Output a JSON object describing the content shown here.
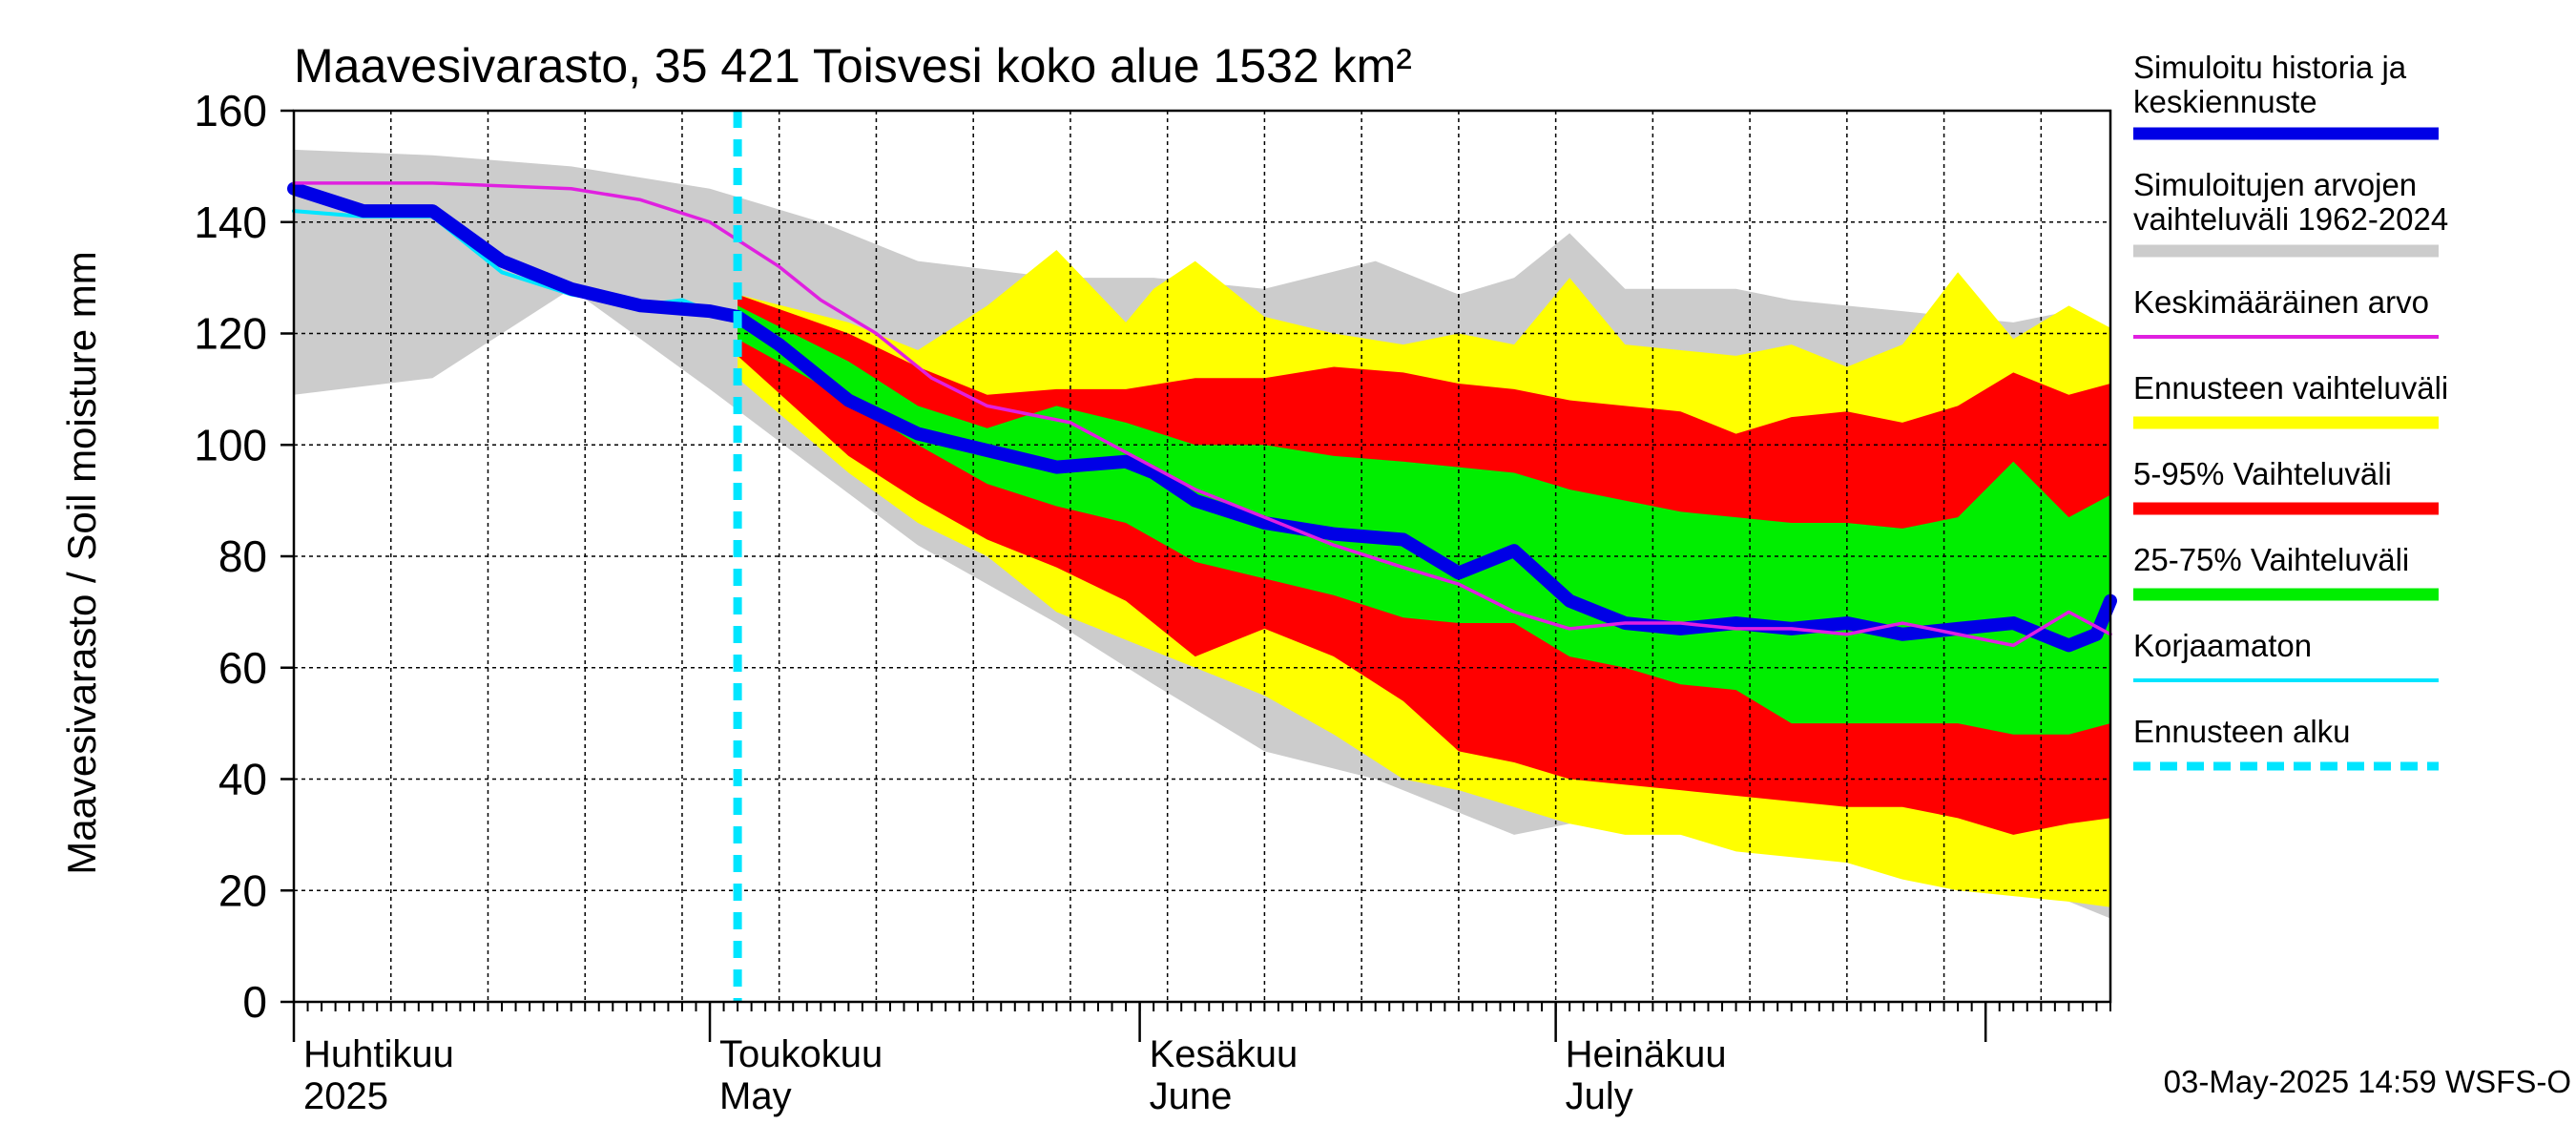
{
  "chart_data": {
    "type": "area",
    "title": "Maavesivarasto, 35 421 Toisvesi koko alue 1532 km²",
    "ylabel": "Maavesivarasto / Soil moisture   mm",
    "ylim": [
      0,
      160
    ],
    "yticks": [
      0,
      20,
      40,
      60,
      80,
      100,
      120,
      140,
      160
    ],
    "xlim": [
      0,
      131
    ],
    "forecast_start_day": 32,
    "month_starts": [
      0,
      30,
      61,
      91,
      122
    ],
    "month_labels": [
      {
        "day": 0,
        "fi": "Huhtikuu",
        "en": "2025"
      },
      {
        "day": 30,
        "fi": "Toukokuu",
        "en": "May"
      },
      {
        "day": 61,
        "fi": "Kesäkuu",
        "en": "June"
      },
      {
        "day": 91,
        "fi": "Heinäkuu",
        "en": "July"
      }
    ],
    "timestamp": "03-May-2025 14:59 WSFS-O",
    "legend": [
      {
        "key": "sim",
        "label1": "Simuloitu historia ja",
        "label2": "keskiennuste",
        "color": "#0000e6",
        "style": "thick"
      },
      {
        "key": "range",
        "label1": "Simuloitujen arvojen",
        "label2": "vaihteluväli 1962-2024",
        "color": "#cccccc",
        "style": "thick"
      },
      {
        "key": "mean",
        "label1": "Keskimääräinen arvo",
        "label2": "",
        "color": "#e020e0",
        "style": "thin"
      },
      {
        "key": "fcrange",
        "label1": "Ennusteen vaihteluväli",
        "label2": "",
        "color": "#ffff00",
        "style": "thick"
      },
      {
        "key": "p595",
        "label1": "5-95% Vaihteluväli",
        "label2": "",
        "color": "#ff0000",
        "style": "thick"
      },
      {
        "key": "p2575",
        "label1": "25-75% Vaihteluväli",
        "label2": "",
        "color": "#00ee00",
        "style": "thick"
      },
      {
        "key": "uncorr",
        "label1": "Korjaamaton",
        "label2": "",
        "color": "#00e5ff",
        "style": "thin"
      },
      {
        "key": "fcstart",
        "label1": "Ennusteen alku",
        "label2": "",
        "color": "#00e5ff",
        "style": "dashed"
      }
    ],
    "series": {
      "hist_range": {
        "x": [
          0,
          10,
          20,
          30,
          38,
          45,
          55,
          62,
          70,
          78,
          84,
          88,
          92,
          96,
          100,
          104,
          108,
          112,
          116,
          120,
          124,
          128,
          131
        ],
        "high": [
          153,
          152,
          150,
          146,
          140,
          133,
          130,
          130,
          128,
          133,
          127,
          130,
          138,
          128,
          128,
          128,
          126,
          125,
          124,
          123,
          122,
          124,
          121
        ],
        "low": [
          109,
          112,
          128,
          110,
          95,
          82,
          68,
          57,
          45,
          40,
          34,
          30,
          32,
          33,
          32,
          30,
          28,
          27,
          26,
          24,
          20,
          18,
          15
        ]
      },
      "fc_range": {
        "x": [
          32,
          40,
          45,
          50,
          55,
          60,
          62,
          65,
          70,
          75,
          80,
          84,
          88,
          92,
          96,
          100,
          104,
          108,
          112,
          116,
          120,
          124,
          128,
          131
        ],
        "high": [
          127,
          122,
          117,
          125,
          135,
          122,
          128,
          133,
          123,
          120,
          118,
          120,
          118,
          130,
          118,
          117,
          116,
          118,
          114,
          118,
          131,
          119,
          125,
          121
        ],
        "low": [
          112,
          95,
          86,
          80,
          70,
          65,
          63,
          60,
          55,
          48,
          40,
          38,
          35,
          32,
          30,
          30,
          27,
          26,
          25,
          22,
          20,
          19,
          18,
          17
        ]
      },
      "p5_95": {
        "x": [
          32,
          40,
          45,
          50,
          55,
          60,
          65,
          70,
          75,
          80,
          84,
          88,
          92,
          96,
          100,
          104,
          108,
          112,
          116,
          120,
          124,
          128,
          131
        ],
        "high": [
          127,
          120,
          114,
          109,
          110,
          110,
          112,
          112,
          114,
          113,
          111,
          110,
          108,
          107,
          106,
          102,
          105,
          106,
          104,
          107,
          113,
          109,
          111
        ],
        "low": [
          116,
          98,
          90,
          83,
          78,
          72,
          62,
          67,
          62,
          54,
          45,
          43,
          40,
          39,
          38,
          37,
          36,
          35,
          35,
          33,
          30,
          32,
          33
        ]
      },
      "p25_75": {
        "x": [
          32,
          40,
          45,
          50,
          55,
          60,
          65,
          70,
          75,
          80,
          84,
          88,
          92,
          96,
          100,
          104,
          108,
          112,
          116,
          120,
          124,
          128,
          131
        ],
        "high": [
          125,
          115,
          107,
          103,
          107,
          104,
          100,
          100,
          98,
          97,
          96,
          95,
          92,
          90,
          88,
          87,
          86,
          86,
          85,
          87,
          97,
          87,
          91
        ],
        "low": [
          119,
          108,
          100,
          93,
          89,
          86,
          79,
          76,
          73,
          69,
          68,
          68,
          62,
          60,
          57,
          56,
          50,
          50,
          50,
          50,
          48,
          48,
          50
        ]
      },
      "mean": {
        "x": [
          0,
          10,
          20,
          25,
          30,
          35,
          38,
          42,
          46,
          50,
          56,
          62,
          65,
          70,
          75,
          80,
          84,
          88,
          92,
          96,
          100,
          104,
          108,
          112,
          116,
          120,
          124,
          128,
          131
        ],
        "y": [
          147,
          147,
          146,
          144,
          140,
          132,
          126,
          120,
          112,
          107,
          104,
          96,
          92,
          87,
          82,
          78,
          75,
          70,
          67,
          68,
          68,
          67,
          67,
          66,
          68,
          66,
          64,
          70,
          66
        ]
      },
      "sim": {
        "x": [
          0,
          5,
          10,
          15,
          20,
          25,
          30,
          32,
          35,
          40,
          45,
          50,
          55,
          60,
          62,
          65,
          70,
          75,
          80,
          84,
          88,
          92,
          96,
          100,
          104,
          108,
          112,
          116,
          120,
          124,
          128,
          130,
          131
        ],
        "y": [
          146,
          142,
          142,
          133,
          128,
          125,
          124,
          123,
          118,
          108,
          102,
          99,
          96,
          97,
          95,
          90,
          86,
          84,
          83,
          77,
          81,
          72,
          68,
          67,
          68,
          67,
          68,
          66,
          67,
          68,
          64,
          66,
          72
        ]
      },
      "uncorr": {
        "x": [
          0,
          5,
          10,
          15,
          20,
          25,
          28,
          30,
          32
        ],
        "y": [
          142,
          141,
          141,
          131,
          127,
          125,
          126,
          124,
          123
        ]
      }
    }
  }
}
